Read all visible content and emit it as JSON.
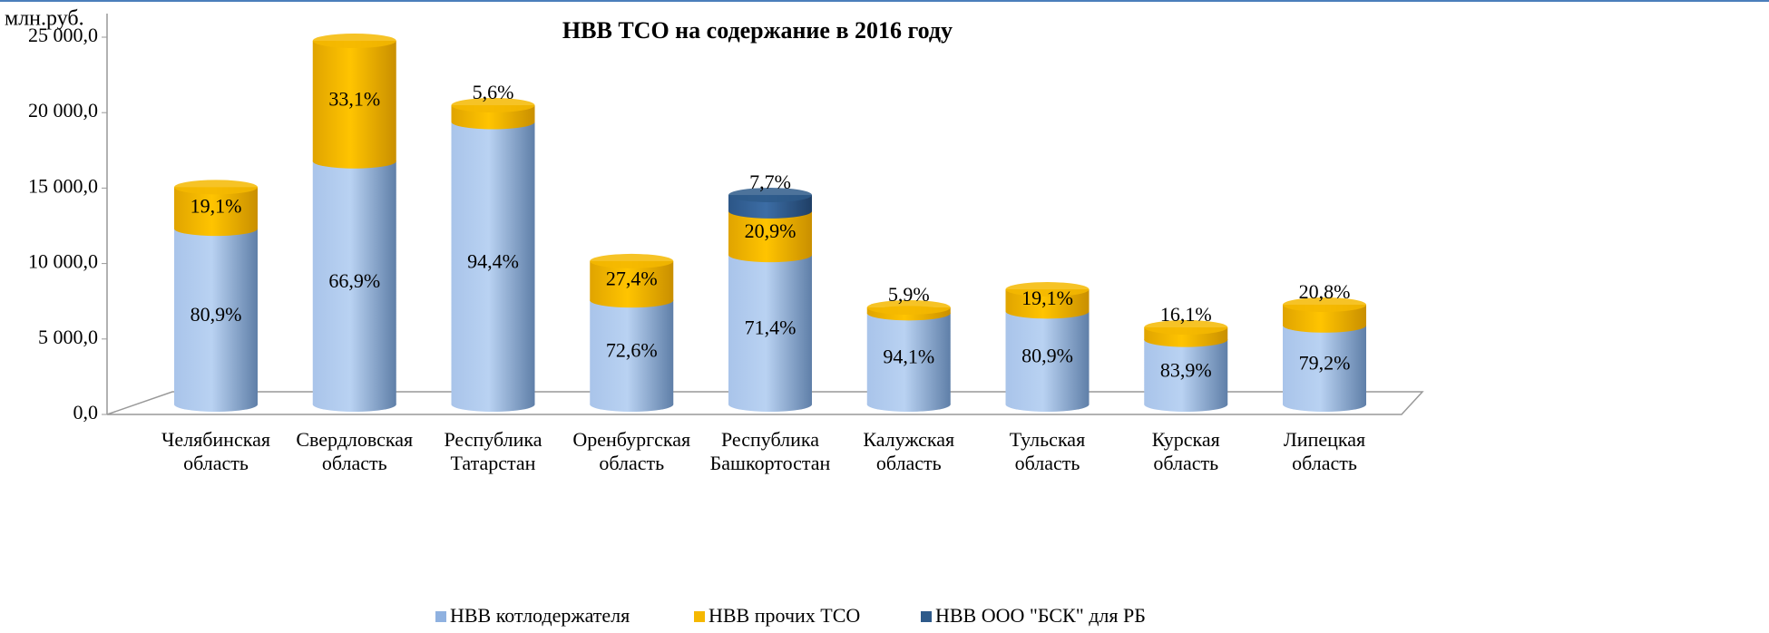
{
  "chart_data": {
    "type": "bar3d-stacked",
    "title": "НВВ ТСО на содержание в 2016 году",
    "y_label": "млн.руб.",
    "categories": [
      "Челябинская область",
      "Свердловская область",
      "Республика Татарстан",
      "Оренбургская область",
      "Республика Башкортостан",
      "Калужская область",
      "Тульская область",
      "Курская область",
      "Липецкая область"
    ],
    "series": [
      {
        "name": "НВВ котлодержателя",
        "color": "#8fb1e0",
        "values": [
          11650,
          16120,
          18720,
          6900,
          9910,
          6050,
          6170,
          4290,
          5240
        ],
        "shares": [
          {
            "value": 80.9,
            "label": "80,9%"
          },
          {
            "value": 66.9,
            "label": "66,9%"
          },
          {
            "value": 94.4,
            "label": "94,4%"
          },
          {
            "value": 72.6,
            "label": "72,6%"
          },
          {
            "value": 71.4,
            "label": "71,4%"
          },
          {
            "value": 94.1,
            "label": "94,1%"
          },
          {
            "value": 80.9,
            "label": "80,9%"
          },
          {
            "value": 83.9,
            "label": "83,9%"
          },
          {
            "value": 79.2,
            "label": "79,2%"
          }
        ]
      },
      {
        "name": "НВВ прочих ТСО",
        "color": "#f5b800",
        "values": [
          2750,
          7980,
          1110,
          2600,
          2900,
          380,
          1460,
          820,
          1370
        ],
        "shares": [
          {
            "value": 19.1,
            "label": "19,1%"
          },
          {
            "value": 33.1,
            "label": "33,1%"
          },
          {
            "value": 5.6,
            "label": "5,6%"
          },
          {
            "value": 27.4,
            "label": "27,4%"
          },
          {
            "value": 20.9,
            "label": "20,9%"
          },
          {
            "value": 5.9,
            "label": "5,9%"
          },
          {
            "value": 19.1,
            "label": "19,1%"
          },
          {
            "value": 16.1,
            "label": "16,1%"
          },
          {
            "value": 20.8,
            "label": "20,8%"
          }
        ]
      },
      {
        "name": "НВВ ООО \"БСК\" для РБ",
        "color": "#2e5a8a",
        "values": [
          null,
          null,
          null,
          null,
          1070,
          null,
          null,
          null,
          null
        ],
        "shares": [
          null,
          null,
          null,
          null,
          {
            "value": 7.7,
            "label": "7,7%"
          },
          null,
          null,
          null,
          null
        ]
      }
    ],
    "ylim": [
      0,
      25000
    ],
    "yticks": [
      {
        "value": 0,
        "label": "0,0"
      },
      {
        "value": 5000,
        "label": "5 000,0"
      },
      {
        "value": 10000,
        "label": "10 000,0"
      },
      {
        "value": 15000,
        "label": "15 000,0"
      },
      {
        "value": 20000,
        "label": "20 000,0"
      },
      {
        "value": 25000,
        "label": "25 000,0"
      }
    ],
    "legend": "bottom"
  }
}
